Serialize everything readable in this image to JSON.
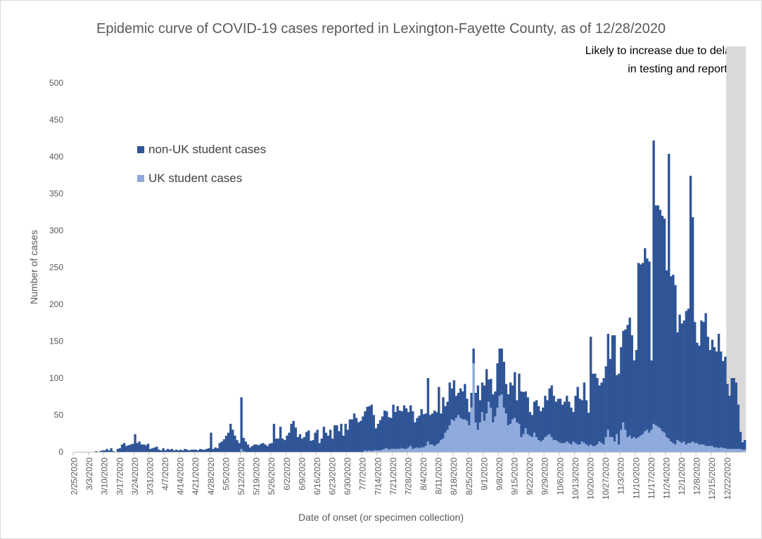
{
  "chart_data": {
    "type": "bar",
    "stacked": true,
    "title": "Epidemic curve of COVID-19 cases reported in Lexington-Fayette County, as of 12/28/2020",
    "xlabel": "Date of onset (or specimen collection)",
    "ylabel": "Number of cases",
    "ylim": [
      0,
      500
    ],
    "yticks": [
      "0",
      "50",
      "100",
      "150",
      "200",
      "250",
      "300",
      "350",
      "400",
      "450",
      "500"
    ],
    "x_start": "2/25/2020",
    "x_end": "12/27/2020",
    "xtick_labels": [
      "2/25/2020",
      "3/3/2020",
      "3/10/2020",
      "3/17/2020",
      "3/24/2020",
      "3/31/2020",
      "4/7/2020",
      "4/14/2020",
      "4/21/2020",
      "4/28/2020",
      "5/5/2020",
      "5/12/2020",
      "5/19/2020",
      "5/26/2020",
      "6/2/2020",
      "6/9/2020",
      "6/16/2020",
      "6/23/2020",
      "6/30/2020",
      "7/7/2020",
      "7/14/2020",
      "7/21/2020",
      "7/28/2020",
      "8/4/2020",
      "8/11/2020",
      "8/18/2020",
      "8/25/2020",
      "9/1/2020",
      "9/8/2020",
      "9/15/2020",
      "9/22/2020",
      "9/29/2020",
      "10/6/2020",
      "10/13/2020",
      "10/20/2020",
      "10/27/2020",
      "11/3/2020",
      "11/10/2020",
      "11/17/2020",
      "11/24/2020",
      "12/1/2020",
      "12/8/2020",
      "12/15/2020",
      "12/22/2020"
    ],
    "grid": false,
    "legend_position": "upper-left",
    "series": [
      {
        "name": "non-UK student cases",
        "color": "#2f5597",
        "weekly_values": [
          [
            0,
            0,
            0,
            0,
            0,
            0,
            0
          ],
          [
            0,
            0,
            0,
            1,
            0,
            1,
            2
          ],
          [
            2,
            4,
            2,
            5,
            1,
            0,
            4
          ],
          [
            5,
            10,
            12,
            8,
            9,
            10,
            11
          ],
          [
            24,
            12,
            14,
            10,
            10,
            9,
            11
          ],
          [
            4,
            5,
            6,
            7,
            3,
            2,
            5
          ],
          [
            2,
            4,
            3,
            4,
            2,
            3,
            2
          ],
          [
            3,
            2,
            4,
            3,
            2,
            3,
            3
          ],
          [
            3,
            2,
            4,
            3,
            3,
            4,
            5
          ],
          [
            26,
            4,
            6,
            5,
            12,
            14,
            17
          ],
          [
            22,
            26,
            38,
            30,
            22,
            16,
            12
          ],
          [
            70,
            18,
            14,
            10,
            6,
            8,
            10
          ],
          [
            10,
            9,
            11,
            12,
            10,
            8,
            11
          ],
          [
            12,
            38,
            18,
            18,
            34,
            18,
            16
          ],
          [
            22,
            26,
            38,
            42,
            33,
            20,
            24
          ],
          [
            18,
            20,
            27,
            29,
            15,
            16,
            26
          ],
          [
            30,
            12,
            18,
            34,
            26,
            22,
            30
          ],
          [
            18,
            36,
            36,
            28,
            38,
            22,
            38
          ],
          [
            30,
            44,
            44,
            52,
            46,
            40,
            42
          ],
          [
            48,
            53,
            60,
            60,
            63,
            48,
            30
          ],
          [
            36,
            41,
            45,
            52,
            50,
            44,
            42
          ],
          [
            60,
            50,
            58,
            52,
            50,
            59,
            55
          ],
          [
            48,
            55,
            51,
            35,
            40,
            44,
            52
          ],
          [
            45,
            44,
            86,
            40,
            42,
            48,
            44
          ],
          [
            76,
            36,
            56,
            36,
            38,
            58,
            42
          ],
          [
            55,
            30,
            30,
            40,
            38,
            48,
            30
          ],
          [
            18,
            20,
            20,
            40,
            60,
            30,
            40
          ],
          [
            48,
            60,
            30,
            39,
            38,
            34,
            60
          ],
          [
            64,
            62,
            62,
            40,
            42,
            56,
            46
          ],
          [
            62,
            30,
            68,
            62,
            57,
            50,
            50
          ],
          [
            32,
            30,
            42,
            50,
            46,
            41,
            44
          ],
          [
            56,
            48,
            62,
            70,
            60,
            52,
            58
          ],
          [
            60,
            52,
            56,
            62,
            56,
            50,
            40
          ],
          [
            64,
            78,
            62,
            56,
            82,
            60,
            45
          ],
          [
            146,
            98,
            98,
            90,
            76,
            82,
            90
          ],
          [
            96,
            130,
            106,
            138,
            144,
            80,
            96
          ],
          [
            112,
            124,
            136,
            152,
            160,
            140,
            104
          ],
          [
            120,
            236,
            232,
            232,
            248,
            232,
            232
          ],
          [
            94,
            384,
            298,
            300,
            296,
            292,
            290
          ],
          [
            226,
            386,
            224,
            228,
            216,
            146,
            172
          ],
          [
            162,
            164,
            181,
            182,
            362,
            304,
            164
          ],
          [
            136,
            134,
            168,
            166,
            180,
            148,
            130
          ],
          [
            144,
            136,
            130,
            155,
            130,
            118,
            124
          ],
          [
            88,
            72,
            96,
            96,
            90,
            60,
            23
          ],
          [
            10,
            13
          ]
        ]
      },
      {
        "name": "UK student cases",
        "color": "#8faadc",
        "weekly_values": [
          [
            0,
            0,
            0,
            0,
            0,
            0,
            0
          ],
          [
            0,
            0,
            0,
            0,
            0,
            0,
            0
          ],
          [
            0,
            0,
            0,
            0,
            0,
            0,
            0
          ],
          [
            0,
            0,
            0,
            0,
            0,
            0,
            0
          ],
          [
            0,
            0,
            0,
            0,
            0,
            0,
            0
          ],
          [
            0,
            0,
            0,
            0,
            0,
            0,
            0
          ],
          [
            0,
            0,
            0,
            0,
            0,
            0,
            0
          ],
          [
            0,
            0,
            0,
            0,
            0,
            0,
            0
          ],
          [
            0,
            0,
            0,
            0,
            0,
            0,
            0
          ],
          [
            0,
            0,
            0,
            0,
            0,
            0,
            0
          ],
          [
            0,
            0,
            0,
            0,
            0,
            0,
            0
          ],
          [
            4,
            1,
            0,
            0,
            0,
            0,
            0
          ],
          [
            0,
            0,
            0,
            0,
            0,
            0,
            0
          ],
          [
            0,
            0,
            0,
            0,
            0,
            0,
            0
          ],
          [
            0,
            0,
            0,
            0,
            0,
            0,
            0
          ],
          [
            0,
            0,
            0,
            0,
            0,
            0,
            0
          ],
          [
            0,
            0,
            0,
            0,
            0,
            0,
            0
          ],
          [
            0,
            0,
            0,
            0,
            0,
            0,
            0
          ],
          [
            0,
            0,
            0,
            0,
            0,
            0,
            0
          ],
          [
            0,
            2,
            1,
            2,
            1,
            2,
            2
          ],
          [
            2,
            2,
            3,
            4,
            5,
            3,
            4
          ],
          [
            4,
            4,
            4,
            4,
            5,
            4,
            4
          ],
          [
            6,
            8,
            4,
            5,
            6,
            5,
            6
          ],
          [
            6,
            8,
            14,
            10,
            10,
            8,
            10
          ],
          [
            12,
            16,
            18,
            26,
            30,
            36,
            44
          ],
          [
            42,
            46,
            50,
            46,
            44,
            44,
            42
          ],
          [
            36,
            60,
            120,
            40,
            30,
            40,
            54
          ],
          [
            42,
            52,
            68,
            60,
            40,
            48,
            60
          ],
          [
            76,
            78,
            60,
            52,
            36,
            38,
            44
          ],
          [
            46,
            40,
            38,
            20,
            24,
            32,
            24
          ],
          [
            22,
            20,
            26,
            20,
            16,
            14,
            16
          ],
          [
            20,
            22,
            24,
            20,
            16,
            16,
            14
          ],
          [
            12,
            12,
            12,
            14,
            12,
            10,
            14
          ],
          [
            12,
            10,
            10,
            14,
            12,
            10,
            8
          ],
          [
            10,
            8,
            8,
            10,
            14,
            12,
            10
          ],
          [
            20,
            30,
            20,
            20,
            14,
            24,
            10
          ],
          [
            30,
            40,
            30,
            20,
            22,
            18,
            20
          ],
          [
            18,
            20,
            22,
            24,
            28,
            30,
            26
          ],
          [
            30,
            38,
            36,
            34,
            32,
            28,
            26
          ],
          [
            20,
            18,
            14,
            12,
            10,
            16,
            14
          ],
          [
            12,
            14,
            10,
            12,
            12,
            14,
            12
          ],
          [
            12,
            10,
            10,
            10,
            8,
            8,
            8
          ],
          [
            8,
            6,
            6,
            5,
            6,
            5,
            5
          ],
          [
            4,
            4,
            4,
            4,
            4,
            4,
            4
          ],
          [
            3,
            3
          ]
        ]
      }
    ],
    "annotations": [
      {
        "text": "Likely to increase due to delays in testing and reporting",
        "shaded_from": "12/21/2020"
      }
    ]
  }
}
